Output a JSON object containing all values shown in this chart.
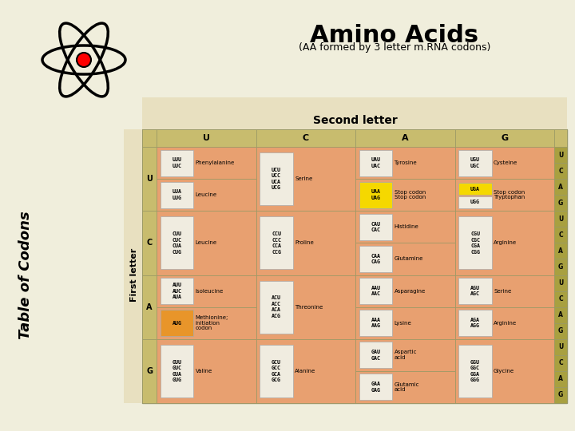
{
  "title": "Amino Acids",
  "subtitle": "(AA formed by 3 letter m.RNA codons)",
  "second_letter_label": "Second letter",
  "first_letter_label": "First letter",
  "table_of_codons_label": "Table of Codons",
  "col_headers": [
    "U",
    "C",
    "A",
    "G"
  ],
  "row_headers": [
    "U",
    "C",
    "A",
    "G"
  ],
  "right_labels": [
    [
      "U",
      "C",
      "A",
      "G"
    ],
    [
      "U",
      "C",
      "A",
      "G"
    ],
    [
      "U",
      "C",
      "A",
      "G"
    ],
    [
      "U",
      "C",
      "A",
      "G"
    ]
  ],
  "bg_color": "#f0eedc",
  "header_bg": "#c8bc6e",
  "cell_bg": "#e8a070",
  "codon_box_bg": "#f0ece0",
  "yellow_hl": "#f5d800",
  "orange_hl": "#e8952a",
  "right_col_bg": "#a8a040",
  "rows": [
    {
      "first": "U",
      "cols": [
        {
          "codons_top": [
            "UUU",
            "UUC"
          ],
          "amino_top": "Phenylalanine",
          "codons_bot": [
            "UUA",
            "UUG"
          ],
          "amino_bot": "Leucine",
          "hl_top": null,
          "hl_bot": null,
          "split": true
        },
        {
          "codons_top": [
            "UCU",
            "UCC",
            "UCA",
            "UCG"
          ],
          "amino_top": "Serine",
          "codons_bot": null,
          "amino_bot": null,
          "hl_top": null,
          "hl_bot": null,
          "split": false
        },
        {
          "codons_top": [
            "UAU",
            "UAC"
          ],
          "amino_top": "Tyrosine",
          "codons_bot": [
            "UAA",
            "UAG"
          ],
          "amino_bot": "Stop codon\nStop codon",
          "hl_top": null,
          "hl_bot": "yellow",
          "split": true
        },
        {
          "codons_top": [
            "UGU",
            "UGC"
          ],
          "amino_top": "Cysteine",
          "codons_bot_list": [
            [
              "UGA",
              "yellow"
            ],
            [
              "UGG",
              "normal"
            ]
          ],
          "amino_bot": "Stop codon\nTryptophan",
          "hl_top": null,
          "hl_bot": "split_uga",
          "split": true
        }
      ]
    },
    {
      "first": "C",
      "cols": [
        {
          "codons_top": [
            "CUU",
            "CUC",
            "CUA",
            "CUG"
          ],
          "amino_top": "Leucine",
          "codons_bot": null,
          "amino_bot": null,
          "hl_top": null,
          "hl_bot": null,
          "split": false
        },
        {
          "codons_top": [
            "CCU",
            "CCC",
            "CCA",
            "CCG"
          ],
          "amino_top": "Proline",
          "codons_bot": null,
          "amino_bot": null,
          "hl_top": null,
          "hl_bot": null,
          "split": false
        },
        {
          "codons_top": [
            "CAU",
            "CAC"
          ],
          "amino_top": "Histidine",
          "codons_bot": [
            "CAA",
            "CAG"
          ],
          "amino_bot": "Glutamine",
          "hl_top": null,
          "hl_bot": null,
          "split": true
        },
        {
          "codons_top": [
            "CGU",
            "CGC",
            "CGA",
            "CGG"
          ],
          "amino_top": "Arginine",
          "codons_bot": null,
          "amino_bot": null,
          "hl_top": null,
          "hl_bot": null,
          "split": false
        }
      ]
    },
    {
      "first": "A",
      "cols": [
        {
          "codons_top": [
            "AUU",
            "AUC",
            "AUA"
          ],
          "amino_top": "Isoleucine",
          "codons_bot": [
            "AUG"
          ],
          "amino_bot": "Methionine;\ninitiation\ncodon",
          "hl_top": null,
          "hl_bot": "orange",
          "split": true
        },
        {
          "codons_top": [
            "ACU",
            "ACC",
            "ACA",
            "ACG"
          ],
          "amino_top": "Threonine",
          "codons_bot": null,
          "amino_bot": null,
          "hl_top": null,
          "hl_bot": null,
          "split": false
        },
        {
          "codons_top": [
            "AAU",
            "AAC"
          ],
          "amino_top": "Asparagine",
          "codons_bot": [
            "AAA",
            "AAG"
          ],
          "amino_bot": "Lysine",
          "hl_top": null,
          "hl_bot": null,
          "split": true
        },
        {
          "codons_top": [
            "AGU",
            "AGC"
          ],
          "amino_top": "Serine",
          "codons_bot": [
            "AGA",
            "AGG"
          ],
          "amino_bot": "Arginine",
          "hl_top": null,
          "hl_bot": null,
          "split": true
        }
      ]
    },
    {
      "first": "G",
      "cols": [
        {
          "codons_top": [
            "GUU",
            "GUC",
            "GUA",
            "GUG"
          ],
          "amino_top": "Valine",
          "codons_bot": null,
          "amino_bot": null,
          "hl_top": null,
          "hl_bot": null,
          "split": false
        },
        {
          "codons_top": [
            "GCU",
            "GCC",
            "GCA",
            "GCG"
          ],
          "amino_top": "Alanine",
          "codons_bot": null,
          "amino_bot": null,
          "hl_top": null,
          "hl_bot": null,
          "split": false
        },
        {
          "codons_top": [
            "GAU",
            "GAC"
          ],
          "amino_top": "Aspartic\nacid",
          "codons_bot": [
            "GAA",
            "GAG"
          ],
          "amino_bot": "Glutamic\nacid",
          "hl_top": null,
          "hl_bot": null,
          "split": true
        },
        {
          "codons_top": [
            "GGU",
            "GGC",
            "GGA",
            "GGG"
          ],
          "amino_top": "Glycine",
          "codons_bot": null,
          "amino_bot": null,
          "hl_top": null,
          "hl_bot": null,
          "split": false
        }
      ]
    }
  ]
}
